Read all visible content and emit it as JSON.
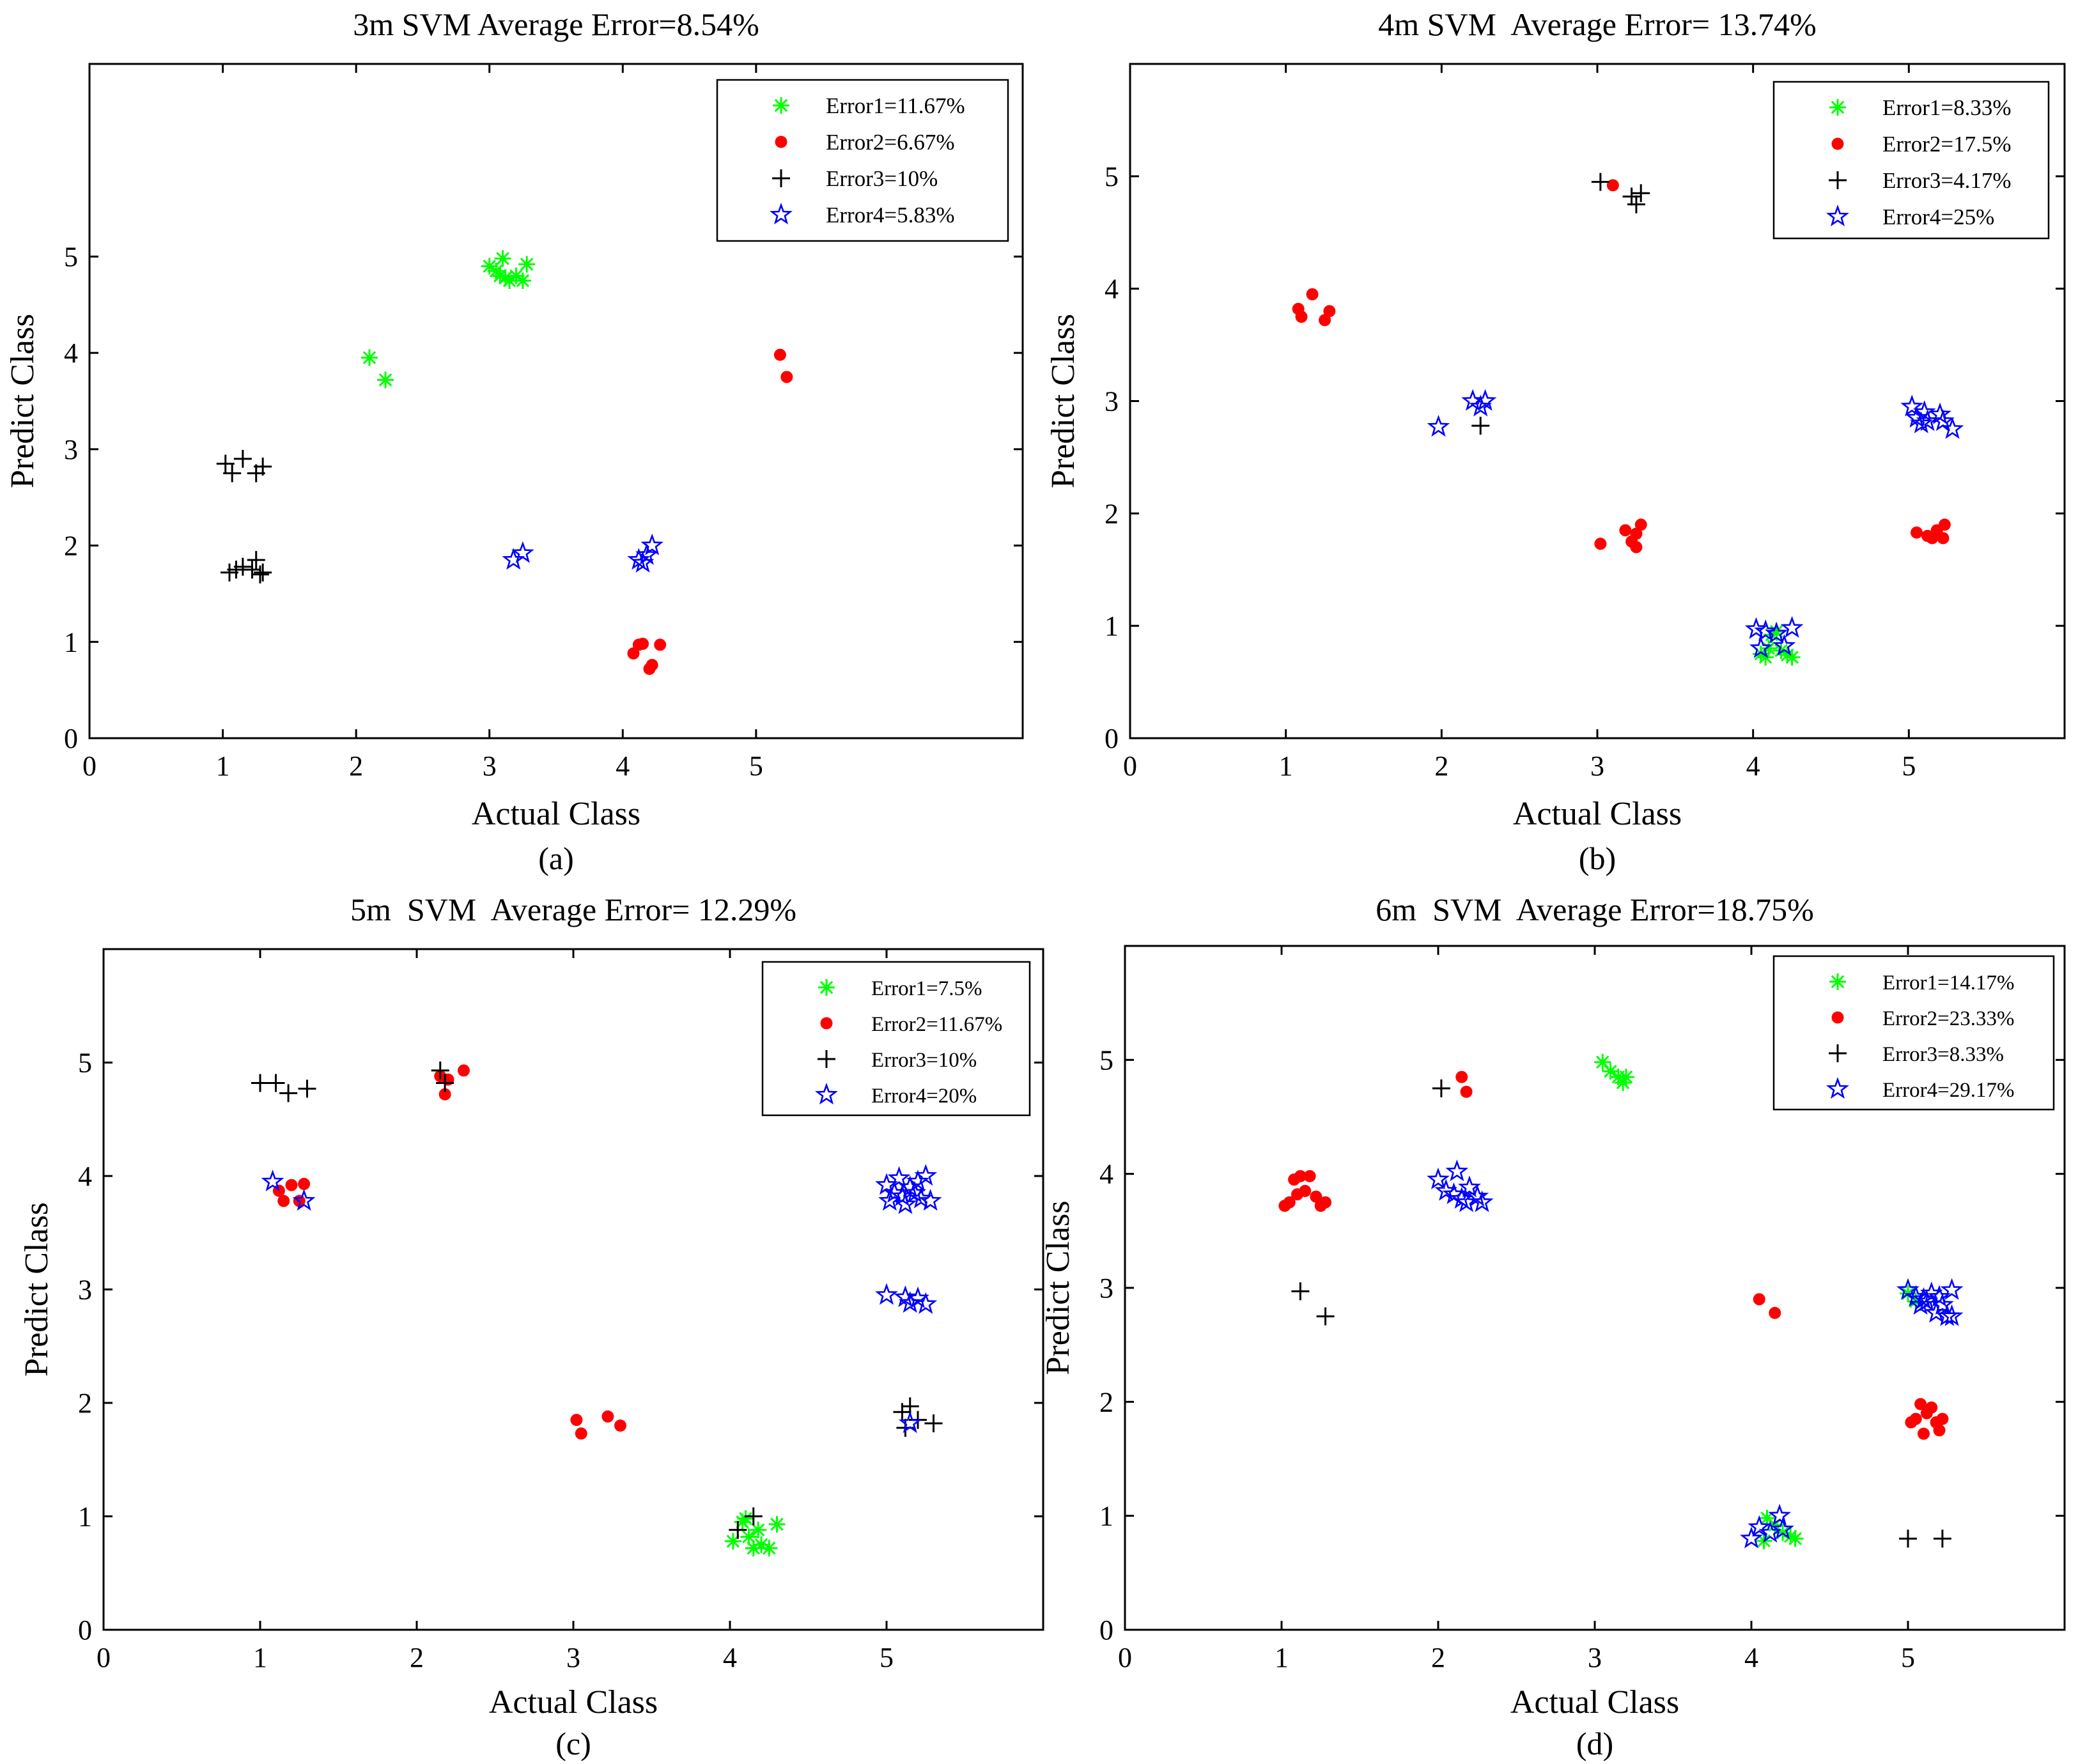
{
  "colors": {
    "green": "#00ff00",
    "red": "#ff0000",
    "black": "#000000",
    "blue": "#0000ff"
  },
  "series_markers": [
    "asterisk",
    "dot",
    "plus",
    "star"
  ],
  "chart_data": [
    {
      "type": "scatter",
      "title": "3m SVM Average Error=8.54%",
      "xlabel": "Actual Class",
      "ylabel": "Predict Class",
      "caption": "(a)",
      "xlim": [
        0,
        7
      ],
      "ylim": [
        0,
        7
      ],
      "xticks": [
        0,
        1,
        2,
        3,
        4,
        5
      ],
      "yticks": [
        0,
        1,
        2,
        3,
        4,
        5
      ],
      "legend_position": "top-right",
      "series": [
        {
          "name": "Error1=11.67%",
          "points": [
            [
              2.1,
              3.95
            ],
            [
              2.22,
              3.72
            ],
            [
              3.0,
              4.9
            ],
            [
              3.05,
              4.85
            ],
            [
              3.1,
              4.98
            ],
            [
              3.12,
              4.78
            ],
            [
              3.15,
              4.75
            ],
            [
              3.2,
              4.8
            ],
            [
              3.25,
              4.75
            ],
            [
              3.28,
              4.92
            ],
            [
              3.08,
              4.8
            ]
          ]
        },
        {
          "name": "Error2=6.67%",
          "points": [
            [
              5.18,
              3.98
            ],
            [
              5.23,
              3.75
            ],
            [
              4.08,
              0.88
            ],
            [
              4.12,
              0.97
            ],
            [
              4.15,
              0.98
            ],
            [
              4.2,
              0.72
            ],
            [
              4.22,
              0.76
            ],
            [
              4.28,
              0.97
            ]
          ]
        },
        {
          "name": "Error3=10%",
          "points": [
            [
              1.02,
              2.85
            ],
            [
              1.07,
              2.75
            ],
            [
              1.15,
              2.9
            ],
            [
              1.25,
              2.75
            ],
            [
              1.3,
              2.82
            ],
            [
              1.05,
              1.72
            ],
            [
              1.1,
              1.75
            ],
            [
              1.15,
              1.78
            ],
            [
              1.22,
              1.75
            ],
            [
              1.25,
              1.85
            ],
            [
              1.28,
              1.7
            ],
            [
              1.3,
              1.72
            ]
          ]
        },
        {
          "name": "Error4=5.83%",
          "points": [
            [
              3.18,
              1.85
            ],
            [
              3.25,
              1.92
            ],
            [
              4.12,
              1.85
            ],
            [
              4.15,
              1.82
            ],
            [
              4.18,
              1.9
            ],
            [
              4.22,
              2.0
            ]
          ]
        }
      ]
    },
    {
      "type": "scatter",
      "title": "4m SVM  Average Error= 13.74%",
      "xlabel": "Actual Class",
      "ylabel": "Predict Class",
      "caption": "(b)",
      "xlim": [
        0,
        6
      ],
      "ylim": [
        0,
        6
      ],
      "xticks": [
        0,
        1,
        2,
        3,
        4,
        5
      ],
      "yticks": [
        0,
        1,
        2,
        3,
        4,
        5
      ],
      "legend_position": "top-right",
      "series": [
        {
          "name": "Error1=8.33%",
          "points": [
            [
              4.05,
              0.75
            ],
            [
              4.08,
              0.72
            ],
            [
              4.1,
              0.8
            ],
            [
              4.12,
              0.92
            ],
            [
              4.15,
              0.95
            ],
            [
              4.18,
              0.78
            ],
            [
              4.22,
              0.74
            ],
            [
              4.25,
              0.72
            ]
          ]
        },
        {
          "name": "Error2=17.5%",
          "points": [
            [
              1.08,
              3.82
            ],
            [
              1.1,
              3.75
            ],
            [
              1.17,
              3.95
            ],
            [
              1.25,
              3.72
            ],
            [
              1.28,
              3.8
            ],
            [
              3.1,
              4.92
            ],
            [
              3.02,
              1.73
            ],
            [
              3.18,
              1.85
            ],
            [
              3.22,
              1.75
            ],
            [
              3.25,
              1.7
            ],
            [
              3.28,
              1.9
            ],
            [
              3.25,
              1.82
            ],
            [
              5.05,
              1.83
            ],
            [
              5.12,
              1.8
            ],
            [
              5.15,
              1.78
            ],
            [
              5.18,
              1.85
            ],
            [
              5.22,
              1.78
            ],
            [
              5.23,
              1.9
            ]
          ]
        },
        {
          "name": "Error3=4.17%",
          "points": [
            [
              3.02,
              4.95
            ],
            [
              3.22,
              4.82
            ],
            [
              3.25,
              4.75
            ],
            [
              3.28,
              4.85
            ],
            [
              2.25,
              2.78
            ]
          ]
        },
        {
          "name": "Error4=25%",
          "points": [
            [
              2.2,
              3.0
            ],
            [
              2.25,
              2.95
            ],
            [
              2.28,
              3.0
            ],
            [
              1.98,
              2.77
            ],
            [
              5.02,
              2.95
            ],
            [
              5.05,
              2.85
            ],
            [
              5.08,
              2.8
            ],
            [
              5.1,
              2.9
            ],
            [
              5.12,
              2.82
            ],
            [
              5.2,
              2.88
            ],
            [
              5.22,
              2.82
            ],
            [
              5.28,
              2.75
            ],
            [
              4.02,
              0.97
            ],
            [
              4.05,
              0.8
            ],
            [
              4.08,
              0.95
            ],
            [
              4.15,
              0.93
            ],
            [
              4.2,
              0.82
            ],
            [
              4.25,
              0.98
            ]
          ]
        }
      ]
    },
    {
      "type": "scatter",
      "title": "5m  SVM  Average Error= 12.29%",
      "xlabel": "Actual Class",
      "ylabel": "Predict Class",
      "caption": "(c)",
      "xlim": [
        0,
        6
      ],
      "ylim": [
        0,
        6
      ],
      "xticks": [
        0,
        1,
        2,
        3,
        4,
        5
      ],
      "yticks": [
        0,
        1,
        2,
        3,
        4,
        5
      ],
      "legend_position": "top-right",
      "series": [
        {
          "name": "Error1=7.5%",
          "points": [
            [
              4.02,
              0.78
            ],
            [
              4.08,
              0.95
            ],
            [
              4.12,
              0.82
            ],
            [
              4.15,
              0.72
            ],
            [
              4.2,
              0.75
            ],
            [
              4.25,
              0.72
            ],
            [
              4.3,
              0.93
            ],
            [
              4.18,
              0.88
            ],
            [
              4.1,
              0.98
            ]
          ]
        },
        {
          "name": "Error2=11.67%",
          "points": [
            [
              1.12,
              3.87
            ],
            [
              1.15,
              3.78
            ],
            [
              1.2,
              3.92
            ],
            [
              1.25,
              3.78
            ],
            [
              1.28,
              3.93
            ],
            [
              2.15,
              4.88
            ],
            [
              2.18,
              4.72
            ],
            [
              2.2,
              4.85
            ],
            [
              2.3,
              4.93
            ],
            [
              3.02,
              1.85
            ],
            [
              3.05,
              1.73
            ],
            [
              3.22,
              1.88
            ],
            [
              3.3,
              1.8
            ]
          ]
        },
        {
          "name": "Error3=10%",
          "points": [
            [
              1.0,
              4.82
            ],
            [
              1.1,
              4.82
            ],
            [
              1.18,
              4.73
            ],
            [
              1.3,
              4.77
            ],
            [
              2.15,
              4.93
            ],
            [
              2.18,
              4.82
            ],
            [
              4.05,
              0.88
            ],
            [
              4.15,
              1.0
            ],
            [
              5.1,
              1.92
            ],
            [
              5.15,
              1.97
            ],
            [
              5.2,
              1.85
            ],
            [
              5.3,
              1.82
            ],
            [
              5.12,
              1.78
            ]
          ]
        },
        {
          "name": "Error4=20%",
          "points": [
            [
              1.08,
              3.95
            ],
            [
              1.28,
              3.78
            ],
            [
              5.0,
              3.92
            ],
            [
              5.02,
              3.78
            ],
            [
              5.05,
              3.85
            ],
            [
              5.08,
              3.98
            ],
            [
              5.1,
              3.82
            ],
            [
              5.12,
              3.75
            ],
            [
              5.15,
              3.9
            ],
            [
              5.18,
              3.85
            ],
            [
              5.2,
              3.95
            ],
            [
              5.22,
              3.8
            ],
            [
              5.25,
              4.0
            ],
            [
              5.28,
              3.78
            ],
            [
              5.0,
              2.95
            ],
            [
              5.12,
              2.93
            ],
            [
              5.15,
              2.88
            ],
            [
              5.2,
              2.92
            ],
            [
              5.25,
              2.87
            ],
            [
              5.15,
              1.82
            ]
          ]
        }
      ]
    },
    {
      "type": "scatter",
      "title": "6m  SVM  Average Error=18.75%",
      "xlabel": "Actual Class",
      "ylabel": "Predict Class",
      "caption": "(d)",
      "xlim": [
        0,
        6
      ],
      "ylim": [
        0,
        6
      ],
      "xticks": [
        0,
        1,
        2,
        3,
        4,
        5
      ],
      "yticks": [
        0,
        1,
        2,
        3,
        4,
        5
      ],
      "legend_position": "top-right",
      "series": [
        {
          "name": "Error1=14.17%",
          "points": [
            [
              3.05,
              4.98
            ],
            [
              3.1,
              4.9
            ],
            [
              3.15,
              4.85
            ],
            [
              3.18,
              4.8
            ],
            [
              3.2,
              4.85
            ],
            [
              4.08,
              0.78
            ],
            [
              4.1,
              0.98
            ],
            [
              4.15,
              0.92
            ],
            [
              4.2,
              0.85
            ],
            [
              4.25,
              0.82
            ],
            [
              4.28,
              0.8
            ],
            [
              5.0,
              2.95
            ],
            [
              5.05,
              2.88
            ]
          ]
        },
        {
          "name": "Error2=23.33%",
          "points": [
            [
              1.02,
              3.72
            ],
            [
              1.05,
              3.75
            ],
            [
              1.08,
              3.95
            ],
            [
              1.1,
              3.82
            ],
            [
              1.12,
              3.98
            ],
            [
              1.15,
              3.85
            ],
            [
              1.18,
              3.98
            ],
            [
              1.22,
              3.8
            ],
            [
              1.25,
              3.72
            ],
            [
              1.28,
              3.75
            ],
            [
              2.15,
              4.85
            ],
            [
              2.18,
              4.72
            ],
            [
              4.05,
              2.9
            ],
            [
              4.15,
              2.78
            ],
            [
              5.02,
              1.82
            ],
            [
              5.05,
              1.85
            ],
            [
              5.08,
              1.98
            ],
            [
              5.1,
              1.72
            ],
            [
              5.12,
              1.9
            ],
            [
              5.15,
              1.95
            ],
            [
              5.18,
              1.82
            ],
            [
              5.2,
              1.75
            ],
            [
              5.22,
              1.85
            ]
          ]
        },
        {
          "name": "Error3=8.33%",
          "points": [
            [
              2.02,
              4.75
            ],
            [
              1.12,
              2.97
            ],
            [
              1.28,
              2.75
            ],
            [
              5.0,
              0.8
            ],
            [
              5.22,
              0.8
            ]
          ]
        },
        {
          "name": "Error4=29.17%",
          "points": [
            [
              2.0,
              3.95
            ],
            [
              2.05,
              3.85
            ],
            [
              2.1,
              3.82
            ],
            [
              2.12,
              4.02
            ],
            [
              2.15,
              3.78
            ],
            [
              2.18,
              3.75
            ],
            [
              2.2,
              3.88
            ],
            [
              2.25,
              3.8
            ],
            [
              2.28,
              3.75
            ],
            [
              5.0,
              2.98
            ],
            [
              5.05,
              2.92
            ],
            [
              5.08,
              2.85
            ],
            [
              5.1,
              2.9
            ],
            [
              5.12,
              2.88
            ],
            [
              5.15,
              2.95
            ],
            [
              5.18,
              2.78
            ],
            [
              5.2,
              2.92
            ],
            [
              5.22,
              2.85
            ],
            [
              5.25,
              2.75
            ],
            [
              5.28,
              2.98
            ],
            [
              5.28,
              2.75
            ],
            [
              4.0,
              0.8
            ],
            [
              4.05,
              0.9
            ],
            [
              4.12,
              0.85
            ],
            [
              4.18,
              1.0
            ],
            [
              4.2,
              0.88
            ]
          ]
        }
      ]
    }
  ]
}
